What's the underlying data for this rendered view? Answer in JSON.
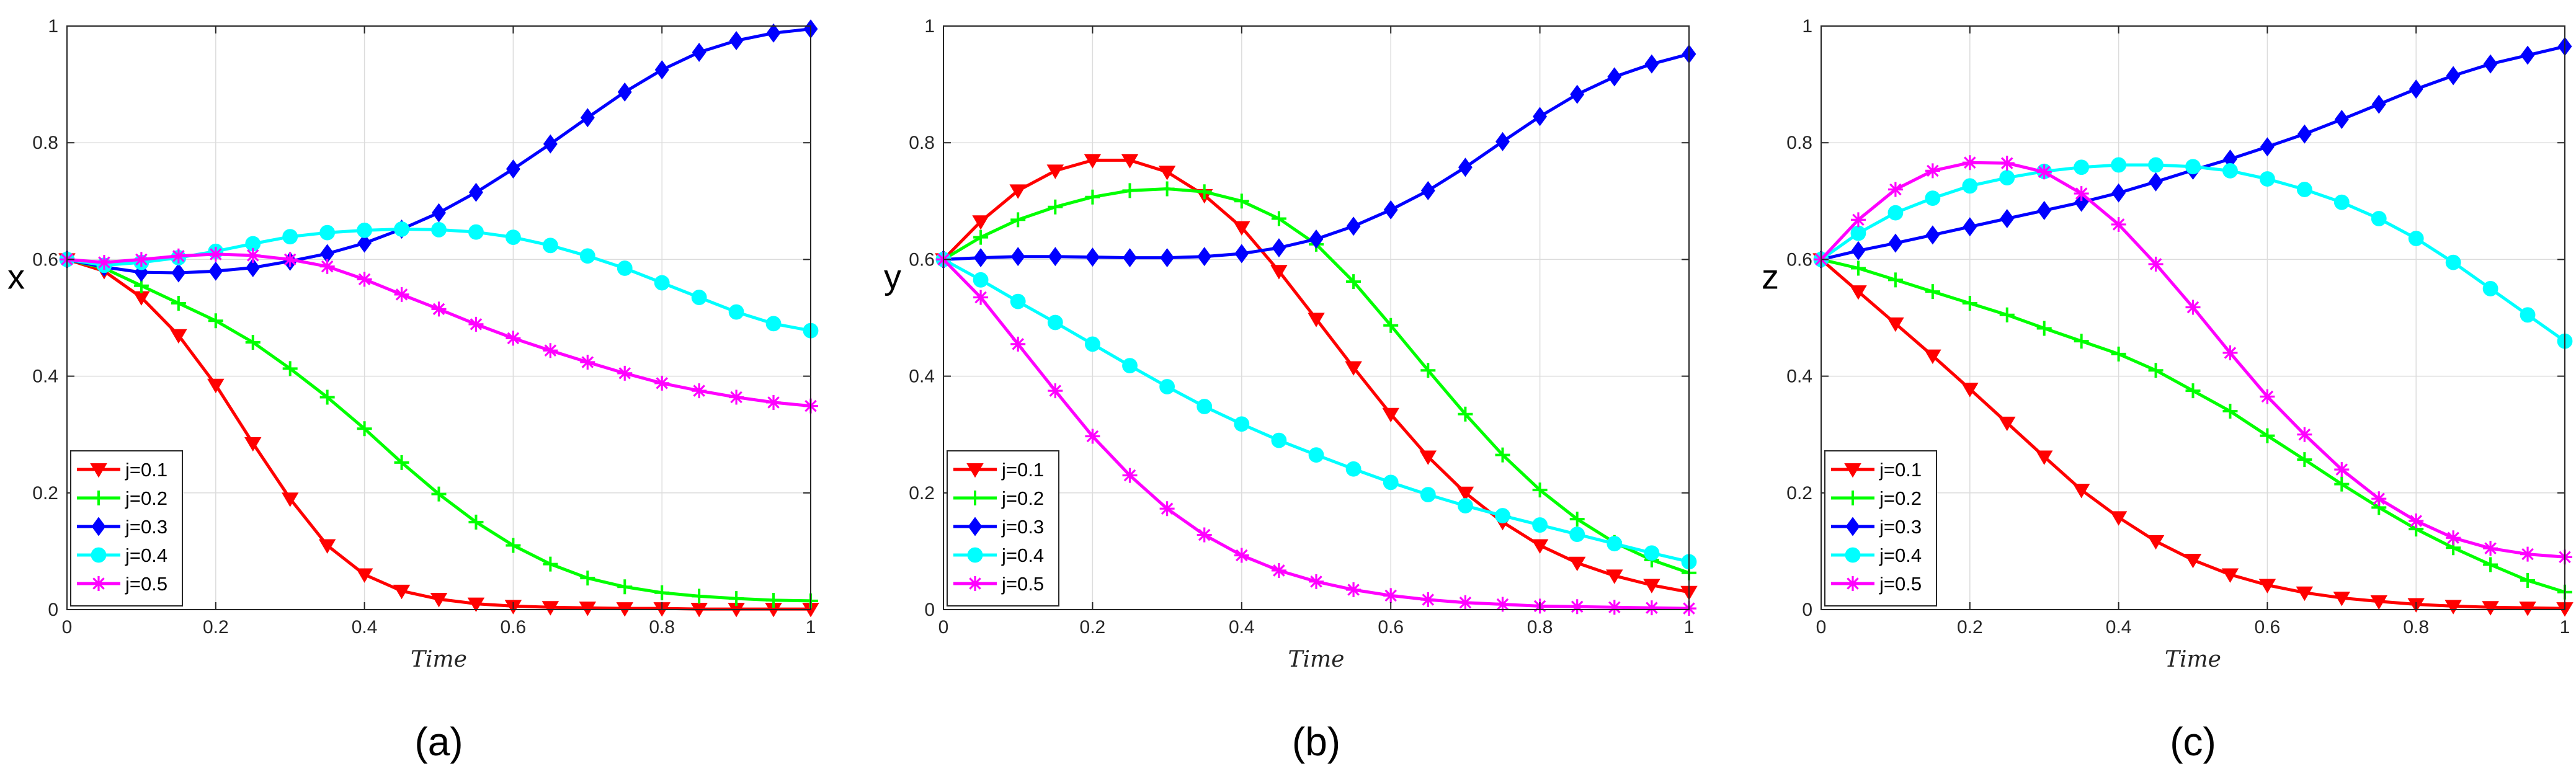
{
  "figure": {
    "panels": [
      "a",
      "b",
      "c"
    ]
  },
  "chart_data": [
    {
      "type": "line",
      "panel_label": "(a)",
      "title": "",
      "xlabel": "Time",
      "ylabel": "x",
      "xlim": [
        0,
        1
      ],
      "ylim": [
        0,
        1
      ],
      "grid": true,
      "legend_position": "bottom-left",
      "xticks": [
        0,
        0.2,
        0.4,
        0.6,
        0.8,
        1
      ],
      "xtick_labels": [
        "0",
        "0.2",
        "0.4",
        "0.6",
        "0.8",
        "1"
      ],
      "yticks": [
        0,
        0.2,
        0.4,
        0.6,
        0.8,
        1
      ],
      "ytick_labels": [
        "0",
        "0.2",
        "0.4",
        "0.6",
        "0.8",
        "1"
      ],
      "x": [
        0,
        0.05,
        0.1,
        0.15,
        0.2,
        0.25,
        0.3,
        0.35,
        0.4,
        0.45,
        0.5,
        0.55,
        0.6,
        0.65,
        0.7,
        0.75,
        0.8,
        0.85,
        0.9,
        0.95,
        1
      ],
      "series": [
        {
          "name": "j=0.1",
          "color": "#ff0000",
          "marker": "triangle-down",
          "values": [
            0.6,
            0.58,
            0.535,
            0.47,
            0.385,
            0.285,
            0.19,
            0.11,
            0.06,
            0.032,
            0.018,
            0.01,
            0.006,
            0.004,
            0.003,
            0.002,
            0.002,
            0.001,
            0.001,
            0.001,
            0.001
          ]
        },
        {
          "name": "j=0.2",
          "color": "#00ff00",
          "marker": "plus",
          "values": [
            0.6,
            0.585,
            0.555,
            0.525,
            0.495,
            0.458,
            0.413,
            0.364,
            0.31,
            0.252,
            0.198,
            0.15,
            0.11,
            0.078,
            0.054,
            0.039,
            0.029,
            0.023,
            0.019,
            0.016,
            0.015
          ]
        },
        {
          "name": "j=0.3",
          "color": "#0000ff",
          "marker": "diamond",
          "values": [
            0.6,
            0.587,
            0.578,
            0.577,
            0.58,
            0.586,
            0.597,
            0.61,
            0.628,
            0.652,
            0.68,
            0.715,
            0.755,
            0.798,
            0.843,
            0.887,
            0.925,
            0.955,
            0.975,
            0.988,
            0.995
          ]
        },
        {
          "name": "j=0.4",
          "color": "#00ffff",
          "marker": "circle",
          "values": [
            0.6,
            0.59,
            0.595,
            0.603,
            0.614,
            0.627,
            0.639,
            0.646,
            0.65,
            0.652,
            0.651,
            0.647,
            0.638,
            0.624,
            0.606,
            0.585,
            0.56,
            0.535,
            0.51,
            0.49,
            0.478
          ]
        },
        {
          "name": "j=0.5",
          "color": "#ff00ff",
          "marker": "asterisk",
          "values": [
            0.6,
            0.595,
            0.6,
            0.606,
            0.609,
            0.607,
            0.6,
            0.588,
            0.566,
            0.54,
            0.515,
            0.489,
            0.465,
            0.444,
            0.424,
            0.405,
            0.388,
            0.375,
            0.364,
            0.355,
            0.349
          ]
        }
      ]
    },
    {
      "type": "line",
      "panel_label": "(b)",
      "title": "",
      "xlabel": "Time",
      "ylabel": "y",
      "xlim": [
        0,
        1
      ],
      "ylim": [
        0,
        1
      ],
      "grid": true,
      "legend_position": "bottom-left",
      "xticks": [
        0,
        0.2,
        0.4,
        0.6,
        0.8,
        1
      ],
      "xtick_labels": [
        "0",
        "0.2",
        "0.4",
        "0.6",
        "0.8",
        "1"
      ],
      "yticks": [
        0,
        0.2,
        0.4,
        0.6,
        0.8,
        1
      ],
      "ytick_labels": [
        "0",
        "0.2",
        "0.4",
        "0.6",
        "0.8",
        "1"
      ],
      "x": [
        0,
        0.05,
        0.1,
        0.15,
        0.2,
        0.25,
        0.3,
        0.35,
        0.4,
        0.45,
        0.5,
        0.55,
        0.6,
        0.65,
        0.7,
        0.75,
        0.8,
        0.85,
        0.9,
        0.95,
        1
      ],
      "series": [
        {
          "name": "j=0.1",
          "color": "#ff0000",
          "marker": "triangle-down",
          "values": [
            0.6,
            0.665,
            0.718,
            0.752,
            0.77,
            0.77,
            0.75,
            0.71,
            0.655,
            0.58,
            0.498,
            0.415,
            0.335,
            0.262,
            0.2,
            0.15,
            0.11,
            0.08,
            0.058,
            0.042,
            0.03
          ]
        },
        {
          "name": "j=0.2",
          "color": "#00ff00",
          "marker": "plus",
          "values": [
            0.6,
            0.638,
            0.668,
            0.69,
            0.707,
            0.718,
            0.721,
            0.716,
            0.7,
            0.67,
            0.626,
            0.562,
            0.487,
            0.41,
            0.335,
            0.265,
            0.205,
            0.155,
            0.115,
            0.085,
            0.063
          ]
        },
        {
          "name": "j=0.3",
          "color": "#0000ff",
          "marker": "diamond",
          "values": [
            0.6,
            0.603,
            0.605,
            0.605,
            0.604,
            0.603,
            0.603,
            0.605,
            0.61,
            0.62,
            0.635,
            0.657,
            0.685,
            0.718,
            0.758,
            0.802,
            0.845,
            0.883,
            0.913,
            0.935,
            0.952
          ]
        },
        {
          "name": "j=0.4",
          "color": "#00ffff",
          "marker": "circle",
          "values": [
            0.6,
            0.565,
            0.528,
            0.492,
            0.455,
            0.418,
            0.382,
            0.348,
            0.318,
            0.29,
            0.265,
            0.241,
            0.218,
            0.197,
            0.178,
            0.161,
            0.145,
            0.129,
            0.113,
            0.097,
            0.082
          ]
        },
        {
          "name": "j=0.5",
          "color": "#ff00ff",
          "marker": "asterisk",
          "values": [
            0.6,
            0.535,
            0.455,
            0.375,
            0.297,
            0.23,
            0.173,
            0.128,
            0.093,
            0.067,
            0.048,
            0.034,
            0.024,
            0.017,
            0.012,
            0.009,
            0.006,
            0.005,
            0.004,
            0.003,
            0.002
          ]
        }
      ]
    },
    {
      "type": "line",
      "panel_label": "(c)",
      "title": "",
      "xlabel": "Time",
      "ylabel": "z",
      "xlim": [
        0,
        1
      ],
      "ylim": [
        0,
        1
      ],
      "grid": true,
      "legend_position": "bottom-left",
      "xticks": [
        0,
        0.2,
        0.4,
        0.6,
        0.8,
        1
      ],
      "xtick_labels": [
        "0",
        "0.2",
        "0.4",
        "0.6",
        "0.8",
        "1"
      ],
      "yticks": [
        0,
        0.2,
        0.4,
        0.6,
        0.8,
        1
      ],
      "ytick_labels": [
        "0",
        "0.2",
        "0.4",
        "0.6",
        "0.8",
        "1"
      ],
      "x": [
        0,
        0.05,
        0.1,
        0.15,
        0.2,
        0.25,
        0.3,
        0.35,
        0.4,
        0.45,
        0.5,
        0.55,
        0.6,
        0.65,
        0.7,
        0.75,
        0.8,
        0.85,
        0.9,
        0.95,
        1
      ],
      "series": [
        {
          "name": "j=0.1",
          "color": "#ff0000",
          "marker": "triangle-down",
          "values": [
            0.6,
            0.545,
            0.49,
            0.435,
            0.378,
            0.32,
            0.262,
            0.205,
            0.158,
            0.117,
            0.085,
            0.06,
            0.042,
            0.029,
            0.02,
            0.014,
            0.009,
            0.006,
            0.004,
            0.003,
            0.002
          ]
        },
        {
          "name": "j=0.2",
          "color": "#00ff00",
          "marker": "plus",
          "values": [
            0.6,
            0.585,
            0.565,
            0.545,
            0.525,
            0.505,
            0.482,
            0.46,
            0.438,
            0.41,
            0.375,
            0.34,
            0.298,
            0.257,
            0.215,
            0.175,
            0.138,
            0.106,
            0.077,
            0.05,
            0.03
          ]
        },
        {
          "name": "j=0.3",
          "color": "#0000ff",
          "marker": "diamond",
          "values": [
            0.6,
            0.615,
            0.628,
            0.642,
            0.656,
            0.67,
            0.684,
            0.698,
            0.714,
            0.733,
            0.753,
            0.772,
            0.793,
            0.815,
            0.84,
            0.866,
            0.892,
            0.915,
            0.935,
            0.95,
            0.965
          ]
        },
        {
          "name": "j=0.4",
          "color": "#00ffff",
          "marker": "circle",
          "values": [
            0.6,
            0.645,
            0.68,
            0.705,
            0.726,
            0.74,
            0.751,
            0.758,
            0.762,
            0.762,
            0.759,
            0.752,
            0.738,
            0.72,
            0.698,
            0.67,
            0.636,
            0.595,
            0.55,
            0.505,
            0.46
          ]
        },
        {
          "name": "j=0.5",
          "color": "#ff00ff",
          "marker": "asterisk",
          "values": [
            0.6,
            0.668,
            0.72,
            0.752,
            0.766,
            0.765,
            0.75,
            0.713,
            0.66,
            0.592,
            0.518,
            0.44,
            0.365,
            0.3,
            0.24,
            0.19,
            0.152,
            0.123,
            0.105,
            0.095,
            0.09
          ]
        }
      ]
    }
  ]
}
